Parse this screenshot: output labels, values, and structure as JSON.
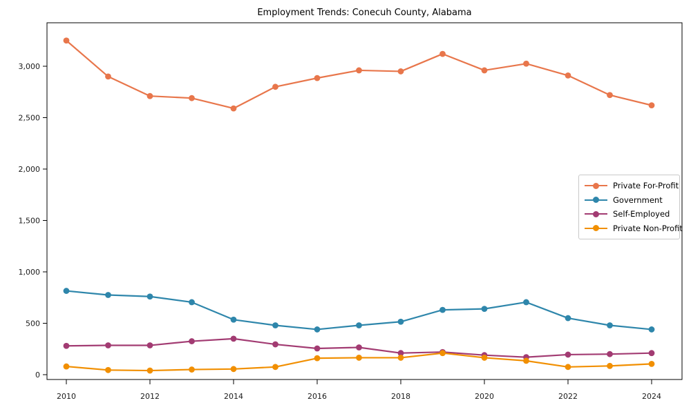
{
  "chart_data": {
    "type": "line",
    "title": "Employment Trends: Conecuh County, Alabama",
    "xlabel": "",
    "ylabel": "",
    "x": [
      2010,
      2011,
      2012,
      2013,
      2014,
      2015,
      2016,
      2017,
      2018,
      2019,
      2020,
      2021,
      2022,
      2023,
      2024
    ],
    "x_ticks": [
      2010,
      2012,
      2014,
      2016,
      2018,
      2020,
      2022,
      2024
    ],
    "y_ticks": [
      0,
      500,
      1000,
      1500,
      2000,
      2500,
      3000
    ],
    "ylim": [
      -50,
      3425
    ],
    "grid": false,
    "legend_position": "center right",
    "series": [
      {
        "name": "Private For-Profit",
        "color": "#E8764B",
        "values": [
          3250,
          2900,
          2710,
          2690,
          2590,
          2800,
          2885,
          2960,
          2950,
          3120,
          2960,
          3025,
          2910,
          2720,
          2620
        ]
      },
      {
        "name": "Government",
        "color": "#2E86AB",
        "values": [
          815,
          775,
          760,
          705,
          535,
          480,
          440,
          480,
          515,
          630,
          640,
          705,
          550,
          480,
          440
        ]
      },
      {
        "name": "Self-Employed",
        "color": "#A23B72",
        "values": [
          280,
          285,
          285,
          325,
          350,
          295,
          255,
          265,
          210,
          220,
          190,
          170,
          195,
          200,
          210
        ]
      },
      {
        "name": "Private Non-Profit",
        "color": "#F18F01",
        "values": [
          80,
          45,
          40,
          50,
          55,
          75,
          160,
          165,
          165,
          210,
          165,
          135,
          75,
          85,
          105
        ]
      }
    ]
  }
}
